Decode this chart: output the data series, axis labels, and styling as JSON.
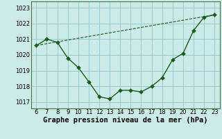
{
  "x": [
    6,
    7,
    8,
    9,
    10,
    11,
    12,
    13,
    14,
    15,
    16,
    17,
    18,
    19,
    20,
    21,
    22,
    23
  ],
  "y": [
    1020.6,
    1021.0,
    1020.8,
    1019.8,
    1019.2,
    1018.3,
    1017.35,
    1017.2,
    1017.75,
    1017.75,
    1017.65,
    1018.0,
    1018.55,
    1019.7,
    1020.1,
    1021.55,
    1022.4,
    1022.55
  ],
  "trend_x": [
    6,
    23
  ],
  "trend_y": [
    1020.6,
    1022.55
  ],
  "line_color": "#1a5c1a",
  "marker_color": "#1a5c1a",
  "bg_color": "#cceae8",
  "grid_color": "#99cccc",
  "xlabel": "Graphe pression niveau de la mer (hPa)",
  "xlim": [
    5.5,
    23.5
  ],
  "ylim": [
    1016.6,
    1023.4
  ],
  "yticks": [
    1017,
    1018,
    1019,
    1020,
    1021,
    1022,
    1023
  ],
  "xticks": [
    6,
    7,
    8,
    9,
    10,
    11,
    12,
    13,
    14,
    15,
    16,
    17,
    18,
    19,
    20,
    21,
    22,
    23
  ],
  "xlabel_fontsize": 7.5,
  "tick_fontsize": 6,
  "line_width": 1.0,
  "marker_size": 3.0,
  "trend_linewidth": 0.8
}
